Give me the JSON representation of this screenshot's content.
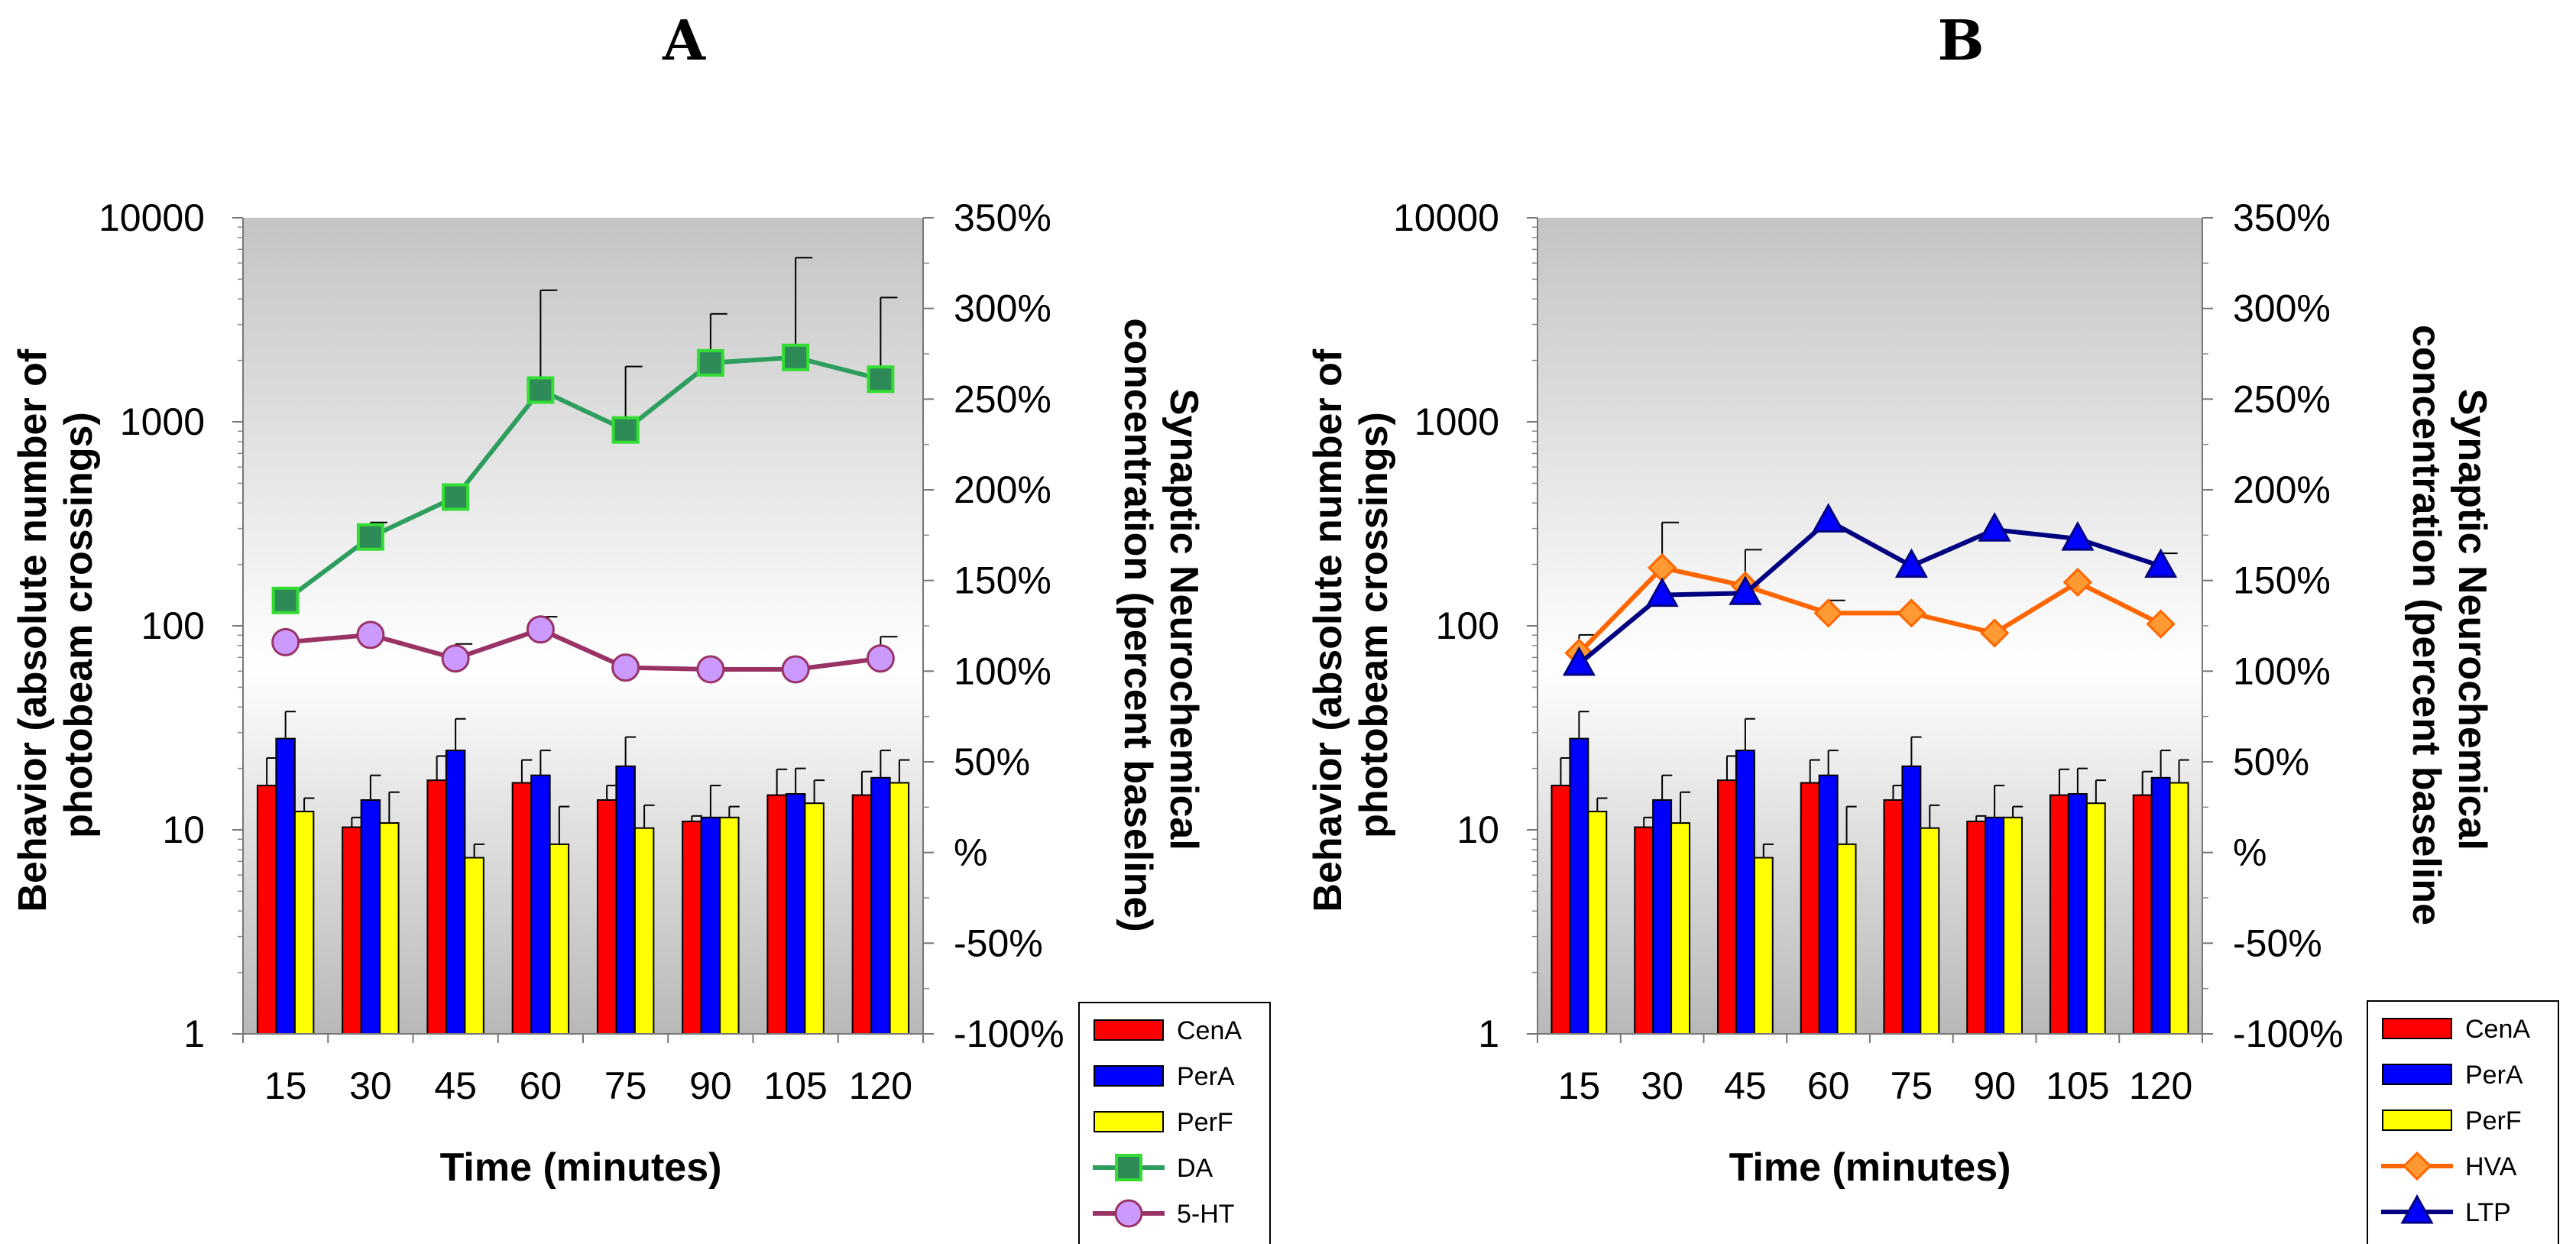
{
  "figure": {
    "colors": {
      "bg_top": "#c4c4c4",
      "bg_mid": "#ffffff",
      "bg_bottom": "#b8b8b8"
    }
  },
  "chart_data": [
    {
      "type": "bar+line",
      "panel": "A",
      "title": "A",
      "xlabel": "Time (minutes)",
      "ylabel_left": [
        "Behavior (absolute number of",
        "photobeam crossings)"
      ],
      "ylabel_right": [
        "Synaptic Neurochemical",
        "concentration (percent baseline)"
      ],
      "categories": [
        "15",
        "30",
        "45",
        "60",
        "75",
        "90",
        "105",
        "120"
      ],
      "y_left": {
        "scale": "log",
        "ylim": [
          1,
          10000
        ],
        "ticks": [
          "1",
          "10",
          "100",
          "1000",
          "10000"
        ]
      },
      "y_right": {
        "ylim": [
          -100,
          350
        ],
        "ticks": [
          "-100%",
          "-50%",
          "%",
          "50%",
          "100%",
          "150%",
          "200%",
          "250%",
          "300%",
          "350%"
        ]
      },
      "bar_series": [
        {
          "name": "CenA",
          "color": "#ff0000",
          "values": [
            16.5,
            10.3,
            17.5,
            17,
            14,
            11,
            14.8,
            14.8
          ],
          "errors": [
            6,
            1.2,
            5.5,
            5,
            2.5,
            0.7,
            5,
            4.5
          ]
        },
        {
          "name": "PerA",
          "color": "#0000ff",
          "values": [
            28,
            14,
            24.5,
            18.5,
            20.5,
            11.5,
            15,
            18
          ],
          "errors": [
            10,
            4.5,
            10.5,
            6,
            8,
            5,
            5,
            6.5
          ]
        },
        {
          "name": "PerF",
          "color": "#ffff00",
          "values": [
            12.3,
            10.8,
            7.3,
            8.5,
            10.2,
            11.5,
            13.5,
            17
          ],
          "errors": [
            2,
            4.5,
            1.2,
            4.5,
            3,
            1.5,
            4,
            5
          ]
        }
      ],
      "line_series": [
        {
          "name": "DA",
          "color": "#2e9e5e",
          "marker": "square",
          "marker_fill": "#2e8b57",
          "marker_edge": "#33dd33",
          "values": [
            139,
            174,
            196,
            255,
            233,
            270,
            273,
            261
          ],
          "errors": [
            0,
            8,
            0,
            55,
            35,
            27,
            55,
            45
          ]
        },
        {
          "name": "5-HT",
          "color": "#993366",
          "marker": "circle",
          "marker_fill": "#cc99ff",
          "marker_edge": "#993366",
          "values": [
            116,
            120,
            107,
            123,
            102,
            101,
            101,
            107
          ],
          "errors": [
            0,
            0,
            8,
            7,
            0,
            0,
            0,
            12
          ]
        }
      ],
      "legend": [
        "CenA",
        "PerA",
        "PerF",
        "DA",
        "5-HT"
      ]
    },
    {
      "type": "bar+line",
      "panel": "B",
      "title": "B",
      "xlabel": "Time (minutes)",
      "ylabel_left": [
        "Behavior (absolute number of",
        "photobeam crossings)"
      ],
      "ylabel_right": [
        "Synaptic Neurochemical",
        "concentration (percent baseline"
      ],
      "categories": [
        "15",
        "30",
        "45",
        "60",
        "75",
        "90",
        "105",
        "120"
      ],
      "y_left": {
        "scale": "log",
        "ylim": [
          1,
          10000
        ],
        "ticks": [
          "1",
          "10",
          "100",
          "1000",
          "10000"
        ]
      },
      "y_right": {
        "ylim": [
          -100,
          350
        ],
        "ticks": [
          "-100%",
          "-50%",
          "%",
          "50%",
          "100%",
          "150%",
          "200%",
          "250%",
          "300%",
          "350%"
        ]
      },
      "bar_series": [
        {
          "name": "CenA",
          "color": "#ff0000",
          "values": [
            16.5,
            10.3,
            17.5,
            17,
            14,
            11,
            14.8,
            14.8
          ],
          "errors": [
            6,
            1.2,
            5.5,
            5,
            2.5,
            0.7,
            5,
            4.5
          ]
        },
        {
          "name": "PerA",
          "color": "#0000ff",
          "values": [
            28,
            14,
            24.5,
            18.5,
            20.5,
            11.5,
            15,
            18
          ],
          "errors": [
            10,
            4.5,
            10.5,
            6,
            8,
            5,
            5,
            6.5
          ]
        },
        {
          "name": "PerF",
          "color": "#ffff00",
          "values": [
            12.3,
            10.8,
            7.3,
            8.5,
            10.2,
            11.5,
            13.5,
            17
          ],
          "errors": [
            2,
            4.5,
            1.2,
            4.5,
            3,
            1.5,
            4,
            5
          ]
        }
      ],
      "line_series": [
        {
          "name": "HVA",
          "color": "#ff6600",
          "marker": "diamond",
          "marker_fill": "#ff9933",
          "marker_edge": "#ff6600",
          "values": [
            110,
            157,
            147,
            132,
            132,
            121,
            149,
            126
          ],
          "errors": [
            10,
            25,
            20,
            7,
            0,
            0,
            0,
            0
          ]
        },
        {
          "name": "LTP",
          "color": "#000080",
          "marker": "triangle",
          "marker_fill": "#0000ff",
          "marker_edge": "#000080",
          "values": [
            104,
            142,
            143,
            183,
            158,
            178,
            173,
            158
          ],
          "errors": [
            0,
            0,
            0,
            0,
            0,
            0,
            0,
            7
          ]
        }
      ],
      "legend": [
        "CenA",
        "PerA",
        "PerF",
        "HVA",
        "LTP"
      ]
    }
  ]
}
